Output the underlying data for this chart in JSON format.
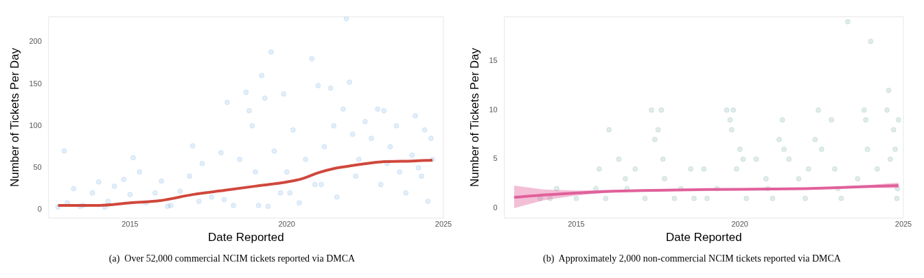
{
  "chart_data": [
    {
      "type": "scatter",
      "xlabel": "Date Reported",
      "ylabel": "Number of Tickets Per Day",
      "xlim": [
        2012.4,
        2025
      ],
      "xticks": [
        2015,
        2020,
        2025
      ],
      "ylim": [
        -10,
        230
      ],
      "yticks": [
        0,
        50,
        100,
        150,
        200
      ],
      "grid": false,
      "legend": false,
      "annotations": [
        "(a)  Over 52,000 commercial NCIM tickets reported via DMCA"
      ],
      "series": [
        {
          "type": "scatter",
          "marker": "circle",
          "color": "#3d8fd6",
          "x": [
            2012.7,
            2012.9,
            2013.0,
            2013.2,
            2013.4,
            2013.5,
            2013.8,
            2014.0,
            2014.2,
            2014.3,
            2014.5,
            2014.8,
            2015.0,
            2015.1,
            2015.3,
            2015.5,
            2015.8,
            2016.0,
            2016.3,
            2016.6,
            2016.9,
            2017.0,
            2017.3,
            2017.6,
            2017.9,
            2018.1,
            2018.3,
            2018.5,
            2018.7,
            2018.8,
            2018.9,
            2019.0,
            2019.2,
            2019.3,
            2019.4,
            2019.5,
            2019.6,
            2019.8,
            2019.9,
            2020.0,
            2020.2,
            2020.4,
            2020.6,
            2020.8,
            2020.9,
            2021.0,
            2021.2,
            2021.4,
            2021.5,
            2021.6,
            2021.8,
            2021.9,
            2022.0,
            2022.1,
            2022.3,
            2022.5,
            2022.7,
            2022.9,
            2023.0,
            2023.1,
            2023.3,
            2023.5,
            2023.6,
            2023.8,
            2024.0,
            2024.1,
            2024.3,
            2024.4,
            2024.5,
            2024.6,
            2024.65,
            2016.2,
            2017.2,
            2018.0,
            2019.1,
            2020.1,
            2021.1,
            2022.2,
            2023.2,
            2024.2
          ],
          "values": [
            3,
            70,
            8,
            25,
            4,
            5,
            20,
            33,
            3,
            10,
            28,
            36,
            18,
            62,
            45,
            8,
            20,
            34,
            5,
            22,
            40,
            76,
            55,
            15,
            68,
            128,
            5,
            60,
            140,
            118,
            100,
            45,
            160,
            133,
            4,
            188,
            70,
            20,
            138,
            45,
            95,
            8,
            60,
            180,
            30,
            148,
            75,
            145,
            100,
            15,
            120,
            228,
            152,
            90,
            60,
            105,
            85,
            120,
            30,
            118,
            75,
            100,
            45,
            20,
            65,
            112,
            40,
            95,
            10,
            85,
            60,
            4,
            10,
            12,
            5,
            20,
            30,
            40,
            55,
            50
          ]
        },
        {
          "type": "line",
          "marker": "none",
          "color": "#d0473c",
          "x": [
            2012.7,
            2013.5,
            2014,
            2015,
            2016,
            2017,
            2018,
            2019,
            2020,
            2020.5,
            2021,
            2021.5,
            2022,
            2023,
            2024,
            2024.65
          ],
          "values": [
            5,
            5,
            5,
            8,
            11,
            18,
            23,
            28,
            33,
            37,
            44,
            49,
            52,
            57,
            58,
            59
          ]
        }
      ]
    },
    {
      "type": "scatter",
      "xlabel": "Date Reported",
      "ylabel": "Number of Tickets Per Day",
      "xlim": [
        2012.8,
        2025
      ],
      "xticks": [
        2015,
        2020,
        2025
      ],
      "ylim": [
        -1,
        19.5
      ],
      "yticks": [
        0,
        5,
        10,
        15
      ],
      "grid": false,
      "legend": false,
      "annotations": [
        "(b)  Approximately 2,000 non-commercial NCIM tickets reported via DMCA"
      ],
      "series": [
        {
          "type": "scatter",
          "marker": "circle",
          "color": "#2f7f7a",
          "x": [
            2013.9,
            2014.2,
            2014.4,
            2015.0,
            2015.6,
            2015.7,
            2015.9,
            2016.0,
            2016.3,
            2016.5,
            2016.8,
            2017.1,
            2017.3,
            2017.4,
            2017.5,
            2017.6,
            2017.65,
            2017.7,
            2018.0,
            2018.2,
            2018.5,
            2018.9,
            2019.3,
            2019.6,
            2019.7,
            2019.75,
            2019.8,
            2019.9,
            2020.0,
            2020.1,
            2020.2,
            2020.5,
            2020.8,
            2021.2,
            2021.3,
            2021.35,
            2021.5,
            2021.8,
            2022.1,
            2022.3,
            2022.4,
            2022.5,
            2022.8,
            2022.9,
            2023.0,
            2023.3,
            2023.6,
            2023.8,
            2023.85,
            2023.9,
            2024.0,
            2024.2,
            2024.5,
            2024.55,
            2024.6,
            2024.7,
            2024.75,
            2024.8,
            2024.85,
            2024.82,
            2021.0,
            2022.0,
            2023.1,
            2019.0,
            2018.6,
            2020.85,
            2016.55
          ],
          "values": [
            1,
            1,
            2,
            1,
            2,
            4,
            1,
            8,
            5,
            3,
            4,
            1,
            10,
            7,
            8,
            10,
            5,
            3,
            1,
            2,
            4,
            4,
            2,
            10,
            9,
            8,
            10,
            4,
            6,
            5,
            1,
            5,
            3,
            7,
            9,
            6,
            5,
            3,
            4,
            7,
            10,
            6,
            9,
            4,
            2,
            19,
            3,
            10,
            9,
            6,
            17,
            4,
            10,
            12,
            5,
            8,
            6,
            1,
            9,
            2,
            1,
            1,
            1,
            1,
            1,
            2,
            2
          ]
        },
        {
          "type": "line",
          "marker": "none",
          "color": "#e0609a",
          "x": [
            2013.1,
            2014,
            2015,
            2016,
            2017,
            2018,
            2019,
            2020,
            2021,
            2022,
            2023,
            2024,
            2024.85
          ],
          "values": [
            1.1,
            1.35,
            1.55,
            1.72,
            1.8,
            1.85,
            1.9,
            1.92,
            1.95,
            2.0,
            2.1,
            2.22,
            2.3
          ],
          "lower": [
            0,
            0.8,
            1.3,
            1.6,
            1.72,
            1.8,
            1.85,
            1.88,
            1.9,
            1.93,
            2.0,
            2.08,
            2.05
          ],
          "upper": [
            2.3,
            1.9,
            1.8,
            1.85,
            1.88,
            1.9,
            1.95,
            1.97,
            2.0,
            2.07,
            2.2,
            2.38,
            2.6
          ]
        }
      ]
    }
  ]
}
